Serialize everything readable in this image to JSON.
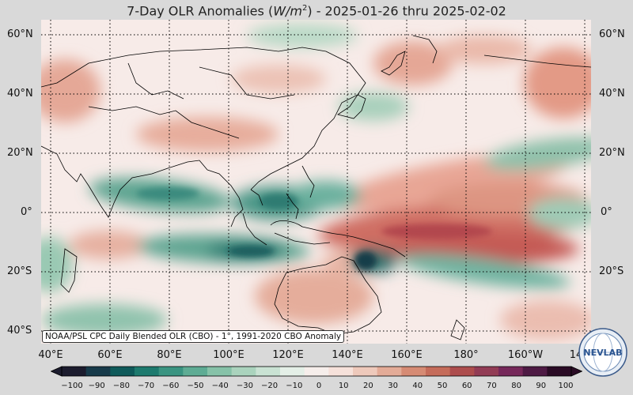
{
  "title": {
    "prefix": "7-Day OLR Anomalies (",
    "unit_base": "W/m",
    "unit_exp": "2",
    "suffix": ") - 2025-01-26 thru 2025-02-02"
  },
  "lat_labels": [
    "60°N",
    "40°N",
    "20°N",
    "0°",
    "20°S",
    "40°S"
  ],
  "lon_labels": [
    "40°E",
    "60°E",
    "80°E",
    "100°E",
    "120°E",
    "140°E",
    "160°E",
    "180°",
    "160°W",
    "14"
  ],
  "attribution": "NOAA/PSL CPC Daily Blended OLR (CBO) - 1°, 1991-2020 CBO Anomaly",
  "colorbar": {
    "ticks": [
      "−100",
      "−90",
      "−80",
      "−70",
      "−60",
      "−50",
      "−40",
      "−30",
      "−20",
      "−10",
      "0",
      "10",
      "20",
      "30",
      "40",
      "50",
      "60",
      "70",
      "80",
      "90",
      "100"
    ],
    "colors": [
      "#1c1c2e",
      "#173a4a",
      "#0f5a5a",
      "#1d7a6e",
      "#3a9481",
      "#5eac94",
      "#86c2a8",
      "#aad3bd",
      "#c9e2d3",
      "#e4efe7",
      "#f6eeeb",
      "#f6e1da",
      "#eec9bb",
      "#e3ab97",
      "#d68b74",
      "#c56c5a",
      "#ad4d4d",
      "#923c55",
      "#76285a",
      "#4e1a44",
      "#2a0b25"
    ]
  },
  "logo": {
    "text": "NEVLAB",
    "icon": "globe-logo-icon"
  },
  "colors": {
    "background": "#d9d9d9",
    "coast": "#000000",
    "grid": "#000000"
  }
}
